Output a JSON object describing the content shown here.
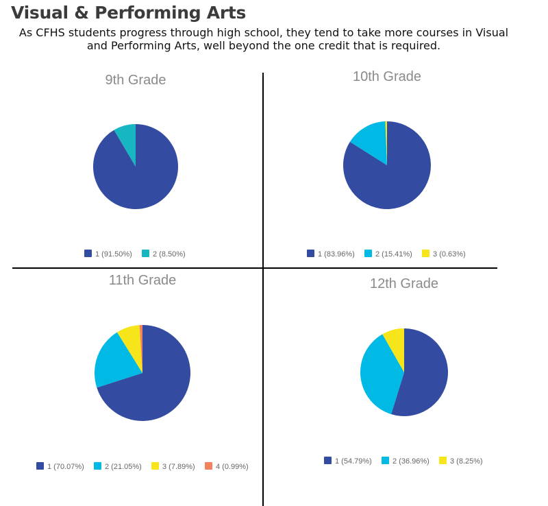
{
  "header": {
    "title": "Visual & Performing Arts",
    "subtitle_line1": "As CFHS students progress through high school, they tend to take more courses in Visual",
    "subtitle_line2": "and Performing Arts, well beyond the one credit that is required."
  },
  "chart_data": [
    {
      "type": "pie",
      "title": "9th Grade",
      "legend_position": "bottom",
      "slices": [
        {
          "label": "1 (91.50%)",
          "value": 91.5,
          "color": "#334ba0"
        },
        {
          "label": "2 (8.50%)",
          "value": 8.5,
          "color": "#16b7c2"
        }
      ]
    },
    {
      "type": "pie",
      "title": "10th Grade",
      "legend_position": "bottom",
      "slices": [
        {
          "label": "1 (83.96%)",
          "value": 83.96,
          "color": "#334ba0"
        },
        {
          "label": "2 (15.41%)",
          "value": 15.41,
          "color": "#00b9e4"
        },
        {
          "label": "3 (0.63%)",
          "value": 0.63,
          "color": "#f6e51b"
        }
      ]
    },
    {
      "type": "pie",
      "title": "11th Grade",
      "legend_position": "bottom",
      "slices": [
        {
          "label": "1 (70.07%)",
          "value": 70.07,
          "color": "#334ba0"
        },
        {
          "label": "2 (21.05%)",
          "value": 21.05,
          "color": "#00b9e4"
        },
        {
          "label": "3 (7.89%)",
          "value": 7.89,
          "color": "#f6e51b"
        },
        {
          "label": "4 (0.99%)",
          "value": 0.99,
          "color": "#f4825f"
        }
      ]
    },
    {
      "type": "pie",
      "title": "12th Grade",
      "legend_position": "bottom",
      "slices": [
        {
          "label": "1 (54.79%)",
          "value": 54.79,
          "color": "#334ba0"
        },
        {
          "label": "2 (36.96%)",
          "value": 36.96,
          "color": "#00b9e4"
        },
        {
          "label": "3 (8.25%)",
          "value": 8.25,
          "color": "#f6e51b"
        }
      ]
    }
  ]
}
